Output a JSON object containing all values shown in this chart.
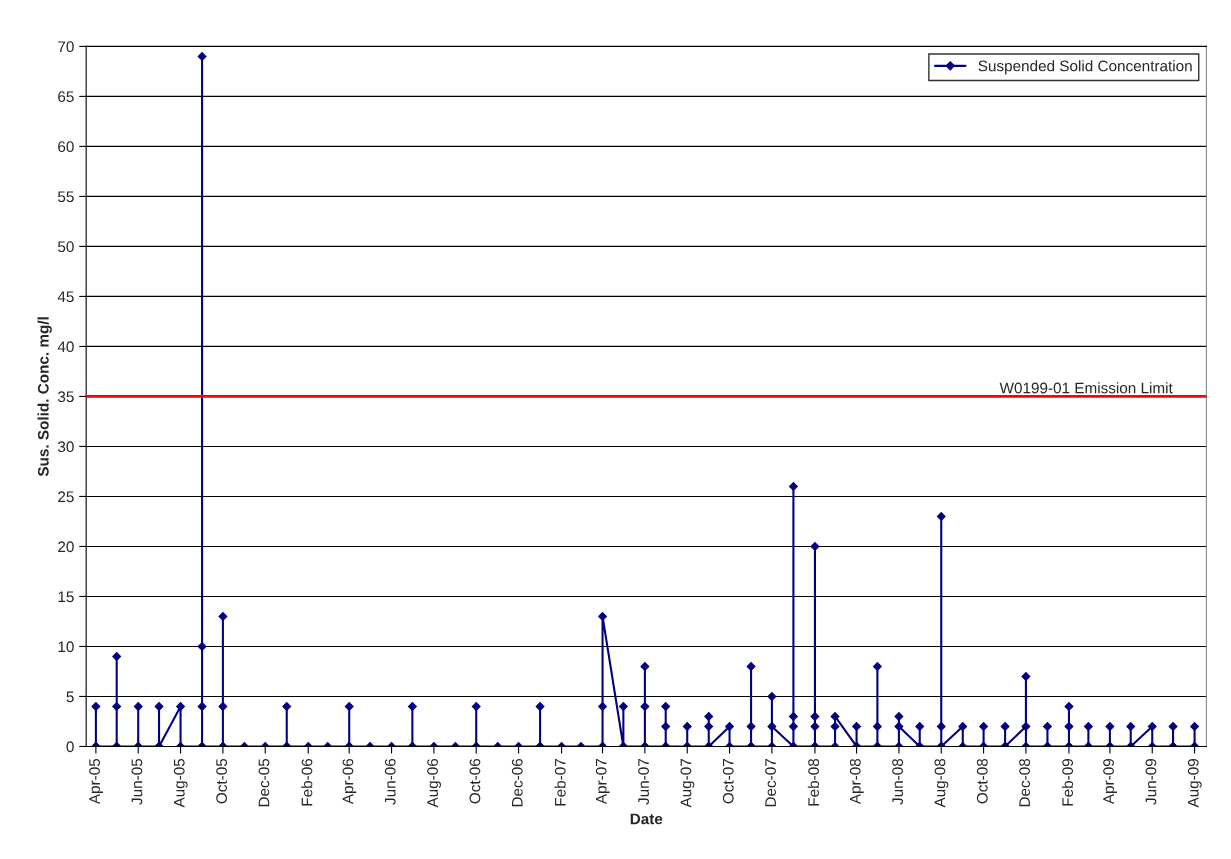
{
  "chart_data": {
    "type": "line",
    "xlabel": "Date",
    "ylabel": "Sus. Solid. Conc. mg/l",
    "xlim": [
      "2005-04-01",
      "2009-09-01"
    ],
    "ylim": [
      0,
      70
    ],
    "yticks": [
      0,
      5,
      10,
      15,
      20,
      25,
      30,
      35,
      40,
      45,
      50,
      55,
      60,
      65,
      70
    ],
    "xticks": [
      {
        "value": "2005-04-15",
        "label": "Apr-05"
      },
      {
        "value": "2005-06-15",
        "label": "Jun-05"
      },
      {
        "value": "2005-08-15",
        "label": "Aug-05"
      },
      {
        "value": "2005-10-15",
        "label": "Oct-05"
      },
      {
        "value": "2005-12-15",
        "label": "Dec-05"
      },
      {
        "value": "2006-02-15",
        "label": "Feb-06"
      },
      {
        "value": "2006-04-15",
        "label": "Apr-06"
      },
      {
        "value": "2006-06-15",
        "label": "Jun-06"
      },
      {
        "value": "2006-08-15",
        "label": "Aug-06"
      },
      {
        "value": "2006-10-15",
        "label": "Oct-06"
      },
      {
        "value": "2006-12-15",
        "label": "Dec-06"
      },
      {
        "value": "2007-02-15",
        "label": "Feb-07"
      },
      {
        "value": "2007-04-15",
        "label": "Apr-07"
      },
      {
        "value": "2007-06-15",
        "label": "Jun-07"
      },
      {
        "value": "2007-08-15",
        "label": "Aug-07"
      },
      {
        "value": "2007-10-15",
        "label": "Oct-07"
      },
      {
        "value": "2007-12-15",
        "label": "Dec-07"
      },
      {
        "value": "2008-02-15",
        "label": "Feb-08"
      },
      {
        "value": "2008-04-15",
        "label": "Apr-08"
      },
      {
        "value": "2008-06-15",
        "label": "Jun-08"
      },
      {
        "value": "2008-08-15",
        "label": "Aug-08"
      },
      {
        "value": "2008-10-15",
        "label": "Oct-08"
      },
      {
        "value": "2008-12-15",
        "label": "Dec-08"
      },
      {
        "value": "2009-02-15",
        "label": "Feb-09"
      },
      {
        "value": "2009-04-15",
        "label": "Apr-09"
      },
      {
        "value": "2009-06-15",
        "label": "Jun-09"
      },
      {
        "value": "2009-08-15",
        "label": "Aug-09"
      }
    ],
    "grid": "y",
    "legend": "top right",
    "marker": "diamond",
    "line_style": "solid",
    "ref_lines": [
      {
        "axis": "y",
        "value": 35,
        "label": "W0199-01 Emission Limit",
        "color": "#ff0000"
      }
    ],
    "series": [
      {
        "name": "Suspended Solid Concentration",
        "color": "#000080",
        "x": [
          "2005-04-15",
          "2005-04-15",
          "2005-04-15",
          "2005-05-15",
          "2005-05-15",
          "2005-05-15",
          "2005-05-15",
          "2005-06-15",
          "2005-06-15",
          "2005-06-15",
          "2005-07-15",
          "2005-07-15",
          "2005-07-15",
          "2005-08-15",
          "2005-08-15",
          "2005-09-15",
          "2005-09-15",
          "2005-09-15",
          "2005-09-15",
          "2005-09-15",
          "2005-10-15",
          "2005-10-15",
          "2005-10-15",
          "2005-10-15",
          "2005-11-15",
          "2005-12-15",
          "2006-01-15",
          "2006-01-15",
          "2006-01-15",
          "2006-02-15",
          "2006-03-15",
          "2006-04-15",
          "2006-04-15",
          "2006-04-15",
          "2006-05-15",
          "2006-06-15",
          "2006-07-15",
          "2006-07-15",
          "2006-07-15",
          "2006-08-15",
          "2006-09-15",
          "2006-10-15",
          "2006-10-15",
          "2006-10-15",
          "2006-11-15",
          "2006-12-15",
          "2007-01-15",
          "2007-01-15",
          "2007-01-15",
          "2007-02-15",
          "2007-03-15",
          "2007-04-15",
          "2007-04-15",
          "2007-04-15",
          "2007-04-15",
          "2007-05-15",
          "2007-05-15",
          "2007-05-15",
          "2007-06-15",
          "2007-06-15",
          "2007-06-15",
          "2007-06-15",
          "2007-07-15",
          "2007-07-15",
          "2007-07-15",
          "2007-07-15",
          "2007-08-15",
          "2007-08-15",
          "2007-08-15",
          "2007-09-15",
          "2007-09-15",
          "2007-09-15",
          "2007-09-15",
          "2007-10-15",
          "2007-10-15",
          "2007-11-15",
          "2007-11-15",
          "2007-11-15",
          "2007-11-15",
          "2007-12-15",
          "2007-12-15",
          "2007-12-15",
          "2008-01-15",
          "2008-01-15",
          "2008-01-15",
          "2008-01-15",
          "2008-01-15",
          "2008-02-15",
          "2008-02-15",
          "2008-02-15",
          "2008-02-15",
          "2008-02-15",
          "2008-03-15",
          "2008-03-15",
          "2008-03-15",
          "2008-04-15",
          "2008-04-15",
          "2008-04-15",
          "2008-05-15",
          "2008-05-15",
          "2008-05-15",
          "2008-05-15",
          "2008-06-15",
          "2008-06-15",
          "2008-06-15",
          "2008-07-15",
          "2008-07-15",
          "2008-07-15",
          "2008-08-15",
          "2008-08-15",
          "2008-08-15",
          "2008-08-15",
          "2008-09-15",
          "2008-09-15",
          "2008-10-15",
          "2008-10-15",
          "2008-10-15",
          "2008-11-15",
          "2008-11-15",
          "2008-11-15",
          "2008-12-15",
          "2008-12-15",
          "2008-12-15",
          "2009-01-15",
          "2009-01-15",
          "2009-01-15",
          "2009-02-15",
          "2009-02-15",
          "2009-02-15",
          "2009-02-15",
          "2009-03-15",
          "2009-03-15",
          "2009-03-15",
          "2009-04-15",
          "2009-04-15",
          "2009-04-15",
          "2009-05-15",
          "2009-05-15",
          "2009-05-15",
          "2009-06-15",
          "2009-06-15",
          "2009-07-15",
          "2009-07-15",
          "2009-07-15",
          "2009-08-15",
          "2009-08-15",
          "2009-08-15"
        ],
        "values": [
          0,
          4,
          0,
          0,
          9,
          4,
          0,
          0,
          4,
          0,
          0,
          4,
          0,
          4,
          0,
          0,
          69,
          10,
          4,
          0,
          0,
          13,
          4,
          0,
          0,
          0,
          0,
          4,
          0,
          0,
          0,
          0,
          4,
          0,
          0,
          0,
          0,
          4,
          0,
          0,
          0,
          0,
          4,
          0,
          0,
          0,
          0,
          4,
          0,
          0,
          0,
          0,
          4,
          0,
          13,
          0,
          4,
          0,
          0,
          8,
          4,
          0,
          0,
          4,
          2,
          0,
          0,
          2,
          0,
          0,
          3,
          2,
          0,
          2,
          0,
          0,
          8,
          2,
          0,
          0,
          5,
          2,
          0,
          26,
          3,
          2,
          0,
          0,
          20,
          3,
          2,
          0,
          0,
          2,
          3,
          0,
          2,
          0,
          0,
          8,
          2,
          0,
          0,
          3,
          2,
          0,
          2,
          0,
          0,
          23,
          2,
          0,
          2,
          0,
          0,
          2,
          0,
          0,
          2,
          0,
          2,
          7,
          0,
          0,
          2,
          0,
          0,
          4,
          2,
          0,
          0,
          2,
          0,
          0,
          2,
          0,
          0,
          2,
          0,
          2,
          0,
          0,
          2,
          0,
          0,
          2,
          0
        ]
      }
    ]
  }
}
